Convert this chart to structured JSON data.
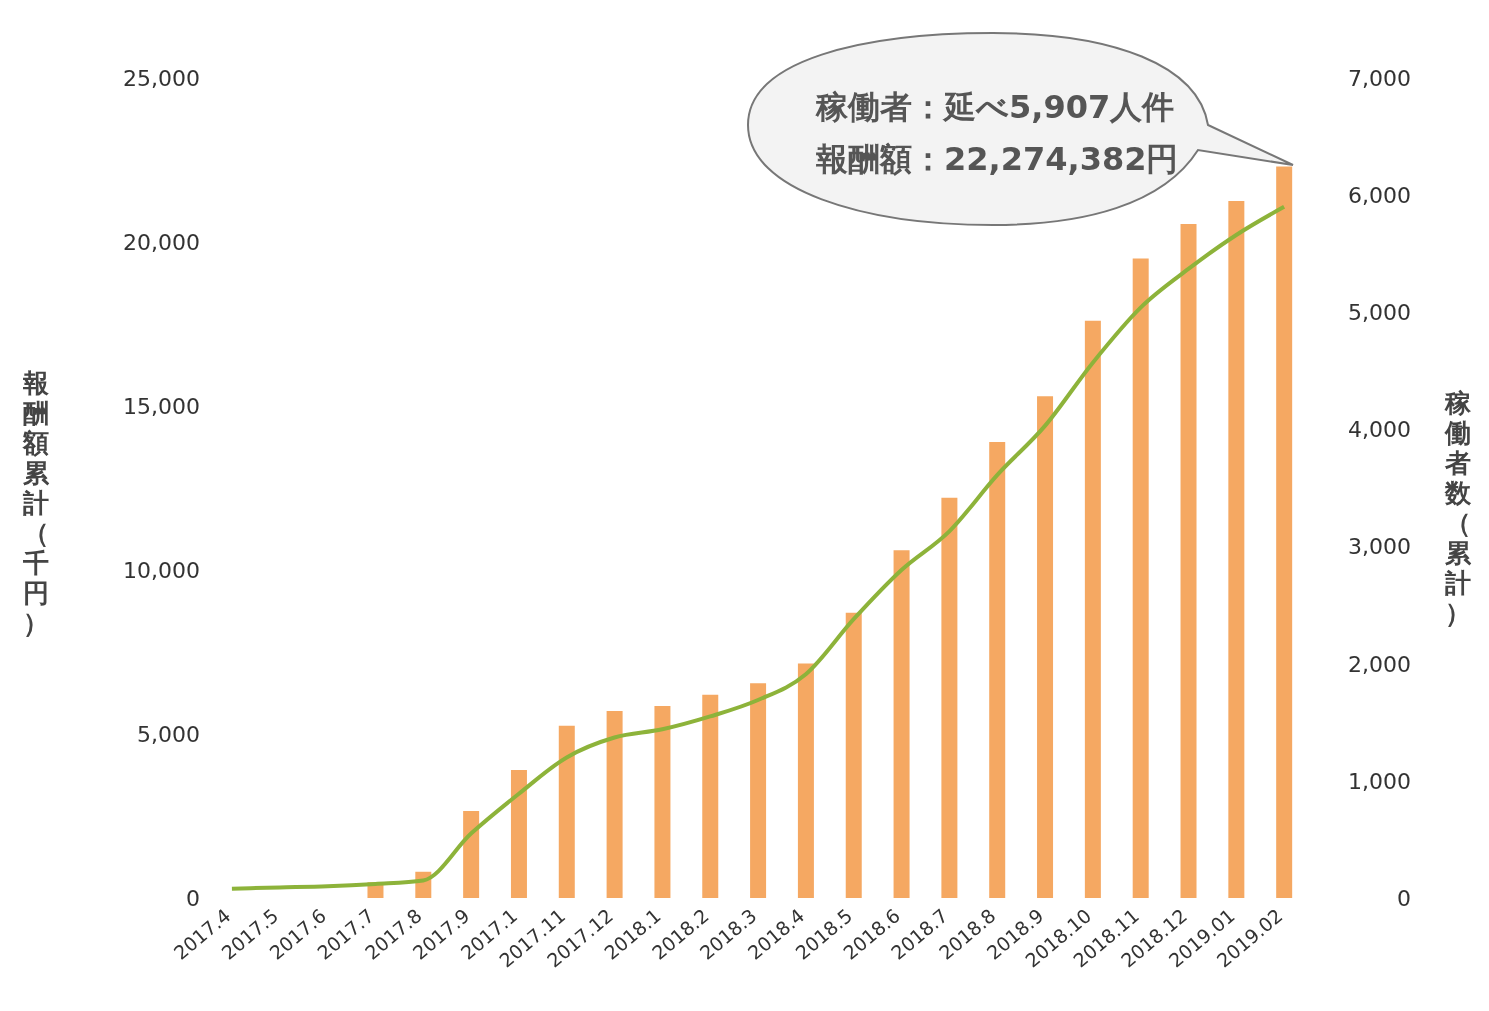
{
  "chart_data": {
    "type": "bar",
    "ylabel": "報酬額累計（千円）",
    "y2label": "稼働者数（累計）",
    "annotations": [
      "稼働者：延べ5,907人件",
      "報酬額：22,274,382円"
    ],
    "categories": [
      "2017.4",
      "2017.5",
      "2017.6",
      "2017.7",
      "2017.8",
      "2017.9",
      "2017.1",
      "2017.11",
      "2017.12",
      "2018.1",
      "2018.2",
      "2018.3",
      "2018.4",
      "2018.5",
      "2018.6",
      "2018.7",
      "2018.8",
      "2018.9",
      "2018.10",
      "2018.11",
      "2018.12",
      "2019.01",
      "2019.02"
    ],
    "series": [
      {
        "color": "#f5a862",
        "values": [
          0,
          0,
          0,
          480,
          800,
          2650,
          3900,
          5250,
          5700,
          5850,
          6200,
          6550,
          7150,
          8700,
          10600,
          12200,
          13900,
          15300,
          17600,
          19500,
          20550,
          21250,
          22300
        ]
      },
      {
        "type": "line",
        "axis": "y2",
        "color": "#8db33a",
        "values": [
          80,
          90,
          100,
          120,
          150,
          550,
          890,
          1200,
          1370,
          1440,
          1550,
          1690,
          1910,
          2380,
          2800,
          3130,
          3610,
          4030,
          4570,
          5040,
          5370,
          5660,
          5900
        ]
      }
    ],
    "ylim": [
      0,
      25000
    ],
    "yticks": [
      0,
      {
        "value": 5000,
        "label": "5,000"
      },
      {
        "value": 10000,
        "label": "10,000"
      },
      {
        "value": 15000,
        "label": "15,000"
      },
      {
        "value": 20000,
        "label": "20,000"
      },
      {
        "value": 25000,
        "label": "25,000"
      }
    ],
    "y2lim": [
      0,
      7000
    ],
    "y2ticks": [
      0,
      {
        "value": 1000,
        "label": "1,000"
      },
      {
        "value": 2000,
        "label": "2,000"
      },
      {
        "value": 3000,
        "label": "3,000"
      },
      {
        "value": 4000,
        "label": "4,000"
      },
      {
        "value": 5000,
        "label": "5,000"
      },
      {
        "value": 6000,
        "label": "6,000"
      },
      {
        "value": 7000,
        "label": "7,000"
      }
    ],
    "grid": false,
    "legend": false,
    "marker": "none",
    "line_style": "solid"
  }
}
